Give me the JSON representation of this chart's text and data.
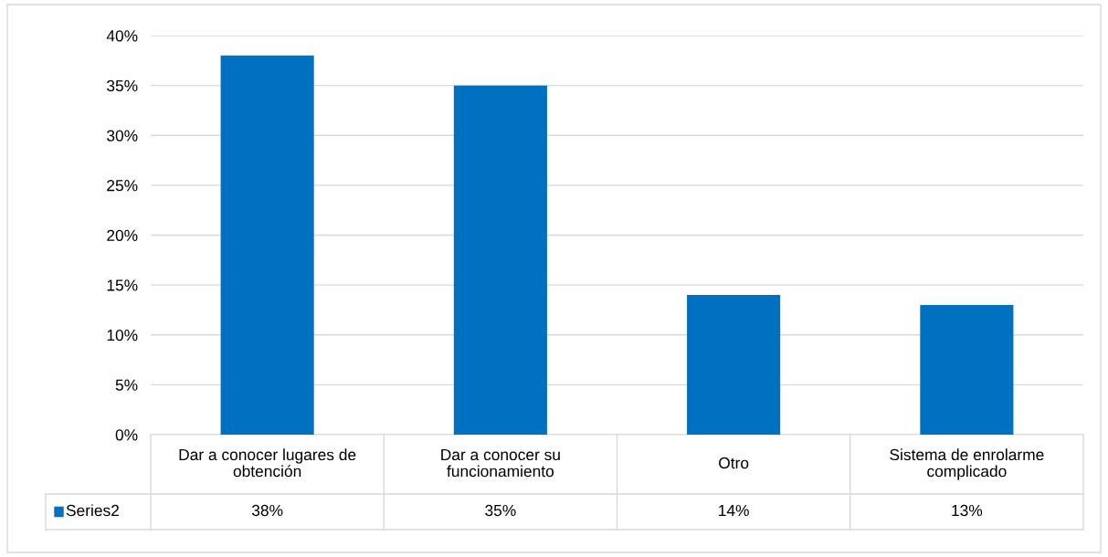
{
  "chart_data": {
    "type": "bar",
    "categories": [
      "Dar a conocer lugares de obtención",
      "Dar a conocer su funcionamiento",
      "Otro",
      "Sistema de enrolarme complicado"
    ],
    "series": [
      {
        "name": "Series2",
        "color": "#0070c0",
        "values": [
          38,
          35,
          14,
          13
        ],
        "value_labels": [
          "38%",
          "35%",
          "14%",
          "13%"
        ]
      }
    ],
    "ylim": [
      0,
      40
    ],
    "yticks": [
      {
        "value": 0,
        "label": "0%"
      },
      {
        "value": 5,
        "label": "5%"
      },
      {
        "value": 10,
        "label": "10%"
      },
      {
        "value": 15,
        "label": "15%"
      },
      {
        "value": 20,
        "label": "20%"
      },
      {
        "value": 25,
        "label": "25%"
      },
      {
        "value": 30,
        "label": "30%"
      },
      {
        "value": 35,
        "label": "35%"
      },
      {
        "value": 40,
        "label": "40%"
      }
    ],
    "grid": "y",
    "legend": "bottom"
  }
}
